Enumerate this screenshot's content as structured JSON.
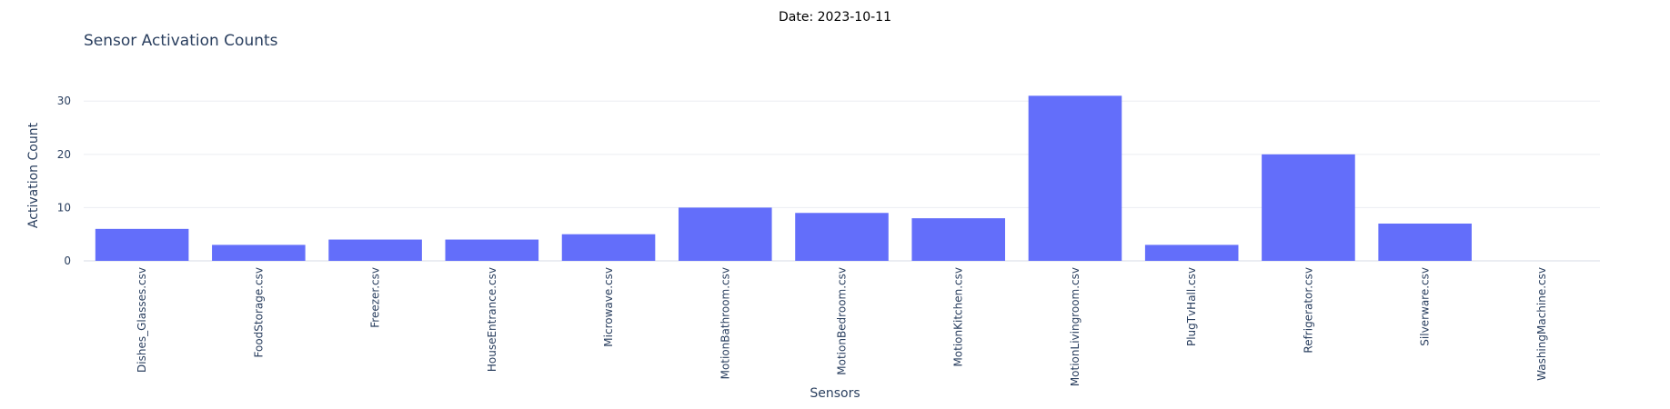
{
  "chart_data": {
    "type": "bar",
    "title": "Sensor Activation Counts",
    "annotation": "Date: 2023-10-11",
    "xlabel": "Sensors",
    "ylabel": "Activation Count",
    "categories": [
      "Dishes_Glasses.csv",
      "FoodStorage.csv",
      "Freezer.csv",
      "HouseEntrance.csv",
      "Microwave.csv",
      "MotionBathroom.csv",
      "MotionBedroom.csv",
      "MotionKitchen.csv",
      "MotionLivingroom.csv",
      "PlugTvHall.csv",
      "Refrigerator.csv",
      "Silverware.csv",
      "WashingMachine.csv"
    ],
    "values": [
      6,
      3,
      4,
      4,
      5,
      10,
      9,
      8,
      31,
      3,
      20,
      7,
      0
    ],
    "ylim": [
      0,
      32.6
    ],
    "yticks": [
      0,
      10,
      20,
      30
    ],
    "bar_color": "#636efa",
    "grid": true
  }
}
